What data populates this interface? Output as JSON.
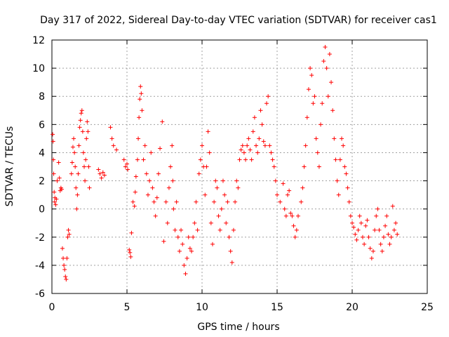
{
  "chart_data": {
    "type": "scatter",
    "title": "Day 317 of 2022, Sidereal Day-to-day VTEC variation (SDTVAR) for receiver cas1",
    "xlabel": "GPS time / hours",
    "ylabel": "SDTVAR / TECUs",
    "xlim": [
      0,
      25
    ],
    "ylim": [
      -6,
      12
    ],
    "xticks": [
      0,
      5,
      10,
      15,
      20,
      25
    ],
    "yticks": [
      -6,
      -4,
      -2,
      0,
      2,
      4,
      6,
      8,
      10,
      12
    ],
    "grid": true,
    "marker": "+",
    "color": "#ff0000",
    "series": [
      {
        "name": "SDTVAR",
        "points": [
          [
            0.05,
            5.3
          ],
          [
            0.08,
            4.8
          ],
          [
            0.1,
            3.5
          ],
          [
            0.12,
            2.5
          ],
          [
            0.15,
            1.2
          ],
          [
            0.18,
            0.5
          ],
          [
            0.2,
            0.8
          ],
          [
            0.25,
            0.3
          ],
          [
            0.3,
            0.7
          ],
          [
            0.35,
            2.0
          ],
          [
            0.45,
            3.3
          ],
          [
            0.5,
            2.2
          ],
          [
            0.55,
            1.3
          ],
          [
            0.6,
            1.5
          ],
          [
            0.65,
            1.4
          ],
          [
            0.7,
            -2.8
          ],
          [
            0.75,
            -3.5
          ],
          [
            0.8,
            -4.0
          ],
          [
            0.85,
            -4.3
          ],
          [
            0.9,
            -4.8
          ],
          [
            0.95,
            -5.0
          ],
          [
            1.0,
            -3.5
          ],
          [
            1.05,
            -2.0
          ],
          [
            1.1,
            -1.5
          ],
          [
            1.15,
            -1.8
          ],
          [
            1.3,
            2.5
          ],
          [
            1.35,
            3.3
          ],
          [
            1.4,
            4.4
          ],
          [
            1.45,
            5.0
          ],
          [
            1.5,
            4.0
          ],
          [
            1.55,
            3.0
          ],
          [
            1.6,
            1.5
          ],
          [
            1.65,
            0.0
          ],
          [
            1.7,
            1.0
          ],
          [
            1.75,
            2.5
          ],
          [
            1.8,
            4.5
          ],
          [
            1.85,
            5.8
          ],
          [
            1.9,
            6.3
          ],
          [
            1.95,
            6.8
          ],
          [
            2.0,
            7.0
          ],
          [
            2.05,
            5.5
          ],
          [
            2.1,
            4.0
          ],
          [
            2.15,
            3.0
          ],
          [
            2.2,
            2.0
          ],
          [
            2.25,
            3.5
          ],
          [
            2.3,
            5.0
          ],
          [
            2.35,
            6.2
          ],
          [
            2.4,
            5.5
          ],
          [
            2.45,
            3.0
          ],
          [
            2.5,
            1.5
          ],
          [
            3.1,
            2.8
          ],
          [
            3.2,
            2.5
          ],
          [
            3.3,
            2.2
          ],
          [
            3.4,
            2.6
          ],
          [
            3.5,
            2.4
          ],
          [
            3.9,
            5.8
          ],
          [
            4.0,
            5.0
          ],
          [
            4.1,
            4.5
          ],
          [
            4.3,
            4.2
          ],
          [
            4.8,
            3.5
          ],
          [
            4.9,
            3.0
          ],
          [
            5.0,
            3.2
          ],
          [
            5.05,
            2.8
          ],
          [
            5.15,
            -2.9
          ],
          [
            5.2,
            -3.1
          ],
          [
            5.25,
            -3.4
          ],
          [
            5.3,
            -1.7
          ],
          [
            5.4,
            0.5
          ],
          [
            5.5,
            0.2
          ],
          [
            5.55,
            1.2
          ],
          [
            5.6,
            2.3
          ],
          [
            5.7,
            3.5
          ],
          [
            5.75,
            5.0
          ],
          [
            5.8,
            6.5
          ],
          [
            5.85,
            7.8
          ],
          [
            5.9,
            8.7
          ],
          [
            5.95,
            8.2
          ],
          [
            6.0,
            7.0
          ],
          [
            6.1,
            3.5
          ],
          [
            6.2,
            4.5
          ],
          [
            6.3,
            2.5
          ],
          [
            6.4,
            1.0
          ],
          [
            6.5,
            2.0
          ],
          [
            6.6,
            4.0
          ],
          [
            6.7,
            1.5
          ],
          [
            6.8,
            0.5
          ],
          [
            6.9,
            -0.5
          ],
          [
            7.0,
            0.8
          ],
          [
            7.1,
            2.5
          ],
          [
            7.2,
            4.3
          ],
          [
            7.35,
            6.2
          ],
          [
            7.45,
            -2.3
          ],
          [
            7.6,
            0.5
          ],
          [
            7.7,
            -1.0
          ],
          [
            7.8,
            1.5
          ],
          [
            7.9,
            3.0
          ],
          [
            8.0,
            4.5
          ],
          [
            8.05,
            2.0
          ],
          [
            8.1,
            0.0
          ],
          [
            8.2,
            -1.5
          ],
          [
            8.3,
            0.5
          ],
          [
            8.4,
            -2.0
          ],
          [
            8.5,
            -3.0
          ],
          [
            8.6,
            -1.5
          ],
          [
            8.7,
            -2.5
          ],
          [
            8.8,
            -4.0
          ],
          [
            8.9,
            -4.6
          ],
          [
            9.0,
            -3.5
          ],
          [
            9.1,
            -2.0
          ],
          [
            9.2,
            -2.8
          ],
          [
            9.3,
            -3.0
          ],
          [
            9.4,
            -2.0
          ],
          [
            9.5,
            -1.0
          ],
          [
            9.6,
            0.5
          ],
          [
            9.7,
            -1.5
          ],
          [
            9.8,
            2.5
          ],
          [
            9.9,
            3.5
          ],
          [
            10.0,
            4.5
          ],
          [
            10.1,
            3.0
          ],
          [
            10.2,
            1.0
          ],
          [
            10.3,
            3.0
          ],
          [
            10.4,
            5.5
          ],
          [
            10.5,
            4.0
          ],
          [
            10.6,
            -1.0
          ],
          [
            10.7,
            -2.5
          ],
          [
            10.8,
            0.5
          ],
          [
            10.9,
            2.0
          ],
          [
            11.0,
            1.5
          ],
          [
            11.1,
            -0.5
          ],
          [
            11.2,
            -1.5
          ],
          [
            11.3,
            0.0
          ],
          [
            11.4,
            2.0
          ],
          [
            11.5,
            1.0
          ],
          [
            11.6,
            -1.0
          ],
          [
            11.7,
            0.5
          ],
          [
            11.8,
            -2.0
          ],
          [
            11.9,
            -3.0
          ],
          [
            12.0,
            -3.8
          ],
          [
            12.1,
            -1.5
          ],
          [
            12.2,
            0.5
          ],
          [
            12.3,
            2.0
          ],
          [
            12.4,
            1.5
          ],
          [
            12.5,
            3.5
          ],
          [
            12.6,
            4.2
          ],
          [
            12.7,
            4.5
          ],
          [
            12.8,
            4.0
          ],
          [
            12.9,
            3.5
          ],
          [
            13.0,
            4.5
          ],
          [
            13.1,
            5.0
          ],
          [
            13.2,
            4.2
          ],
          [
            13.3,
            3.5
          ],
          [
            13.4,
            5.5
          ],
          [
            13.5,
            6.5
          ],
          [
            13.6,
            4.5
          ],
          [
            13.7,
            4.0
          ],
          [
            13.8,
            5.0
          ],
          [
            13.9,
            7.0
          ],
          [
            14.0,
            6.0
          ],
          [
            14.1,
            4.8
          ],
          [
            14.2,
            4.5
          ],
          [
            14.3,
            7.5
          ],
          [
            14.4,
            8.0
          ],
          [
            14.5,
            4.5
          ],
          [
            14.6,
            4.0
          ],
          [
            14.7,
            3.5
          ],
          [
            14.8,
            3.0
          ],
          [
            14.9,
            2.0
          ],
          [
            15.0,
            1.0
          ],
          [
            15.2,
            0.5
          ],
          [
            15.4,
            1.8
          ],
          [
            15.5,
            0.0
          ],
          [
            15.6,
            -0.5
          ],
          [
            15.7,
            1.0
          ],
          [
            15.8,
            1.3
          ],
          [
            15.9,
            -0.3
          ],
          [
            16.0,
            -0.5
          ],
          [
            16.1,
            -1.2
          ],
          [
            16.2,
            -2.0
          ],
          [
            16.3,
            -1.5
          ],
          [
            16.4,
            -0.5
          ],
          [
            16.6,
            0.5
          ],
          [
            16.7,
            1.5
          ],
          [
            16.8,
            3.0
          ],
          [
            16.9,
            4.5
          ],
          [
            17.0,
            6.5
          ],
          [
            17.1,
            8.5
          ],
          [
            17.2,
            10.0
          ],
          [
            17.3,
            9.5
          ],
          [
            17.4,
            7.5
          ],
          [
            17.5,
            8.0
          ],
          [
            17.6,
            5.0
          ],
          [
            17.7,
            4.0
          ],
          [
            17.8,
            3.0
          ],
          [
            17.9,
            6.0
          ],
          [
            18.0,
            7.5
          ],
          [
            18.1,
            10.5
          ],
          [
            18.2,
            11.5
          ],
          [
            18.3,
            10.0
          ],
          [
            18.4,
            8.0
          ],
          [
            18.5,
            11.0
          ],
          [
            18.6,
            9.0
          ],
          [
            18.7,
            7.0
          ],
          [
            18.8,
            5.0
          ],
          [
            18.9,
            3.5
          ],
          [
            19.0,
            2.0
          ],
          [
            19.1,
            1.0
          ],
          [
            19.2,
            3.5
          ],
          [
            19.3,
            5.0
          ],
          [
            19.4,
            4.5
          ],
          [
            19.5,
            3.0
          ],
          [
            19.6,
            2.5
          ],
          [
            19.7,
            1.5
          ],
          [
            19.8,
            0.5
          ],
          [
            19.9,
            -0.5
          ],
          [
            20.0,
            -1.0
          ],
          [
            20.1,
            -1.3
          ],
          [
            20.2,
            -1.8
          ],
          [
            20.3,
            -2.2
          ],
          [
            20.4,
            -1.5
          ],
          [
            20.5,
            -0.5
          ],
          [
            20.6,
            -1.0
          ],
          [
            20.7,
            -2.0
          ],
          [
            20.8,
            -2.5
          ],
          [
            20.9,
            -1.2
          ],
          [
            21.0,
            -0.8
          ],
          [
            21.1,
            -2.0
          ],
          [
            21.2,
            -2.8
          ],
          [
            21.3,
            -3.5
          ],
          [
            21.4,
            -3.0
          ],
          [
            21.5,
            -1.5
          ],
          [
            21.6,
            -0.5
          ],
          [
            21.7,
            0.0
          ],
          [
            21.8,
            -1.5
          ],
          [
            21.9,
            -2.5
          ],
          [
            22.0,
            -3.0
          ],
          [
            22.1,
            -2.0
          ],
          [
            22.2,
            -1.2
          ],
          [
            22.3,
            -0.5
          ],
          [
            22.4,
            -1.8
          ],
          [
            22.5,
            -2.5
          ],
          [
            22.6,
            -2.0
          ],
          [
            22.7,
            0.2
          ],
          [
            22.8,
            -1.5
          ],
          [
            22.9,
            -1.0
          ],
          [
            23.0,
            -1.8
          ]
        ]
      }
    ]
  }
}
